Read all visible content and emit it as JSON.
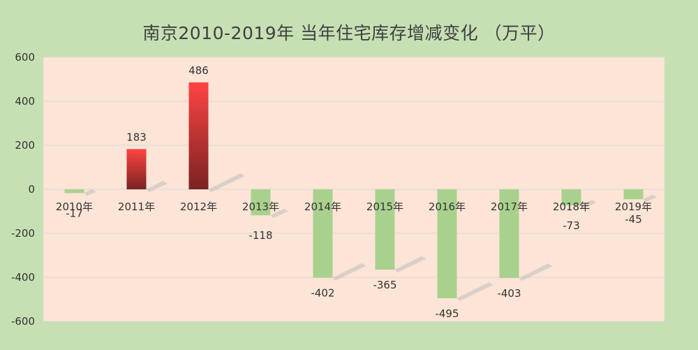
{
  "chart_data": {
    "type": "bar",
    "title": "南京2010-2019年 当年住宅库存增减变化 （万平）",
    "categories": [
      "2010年",
      "2011年",
      "2012年",
      "2013年",
      "2014年",
      "2015年",
      "2016年",
      "2017年",
      "2018年",
      "2019年"
    ],
    "values": [
      -17,
      183,
      486,
      -118,
      -402,
      -365,
      -495,
      -403,
      -73,
      -45
    ],
    "data_labels": [
      "-17",
      "183",
      "486",
      "-118",
      "-402",
      "-365",
      "-495",
      "-403",
      "-73",
      "-45"
    ],
    "yticks": [
      "600",
      "400",
      "200",
      "0",
      "-200",
      "-400",
      "-600"
    ],
    "ylim": [
      -600,
      600
    ],
    "grid": true,
    "legend": "none",
    "colors": {
      "positive_top": "#ff4444",
      "positive_bottom": "#7a2222",
      "negative": "#a9d18e",
      "plot_background": "#fce4d6",
      "chart_background": "#c6e0b4",
      "gridline": "#d9d9d9"
    }
  }
}
